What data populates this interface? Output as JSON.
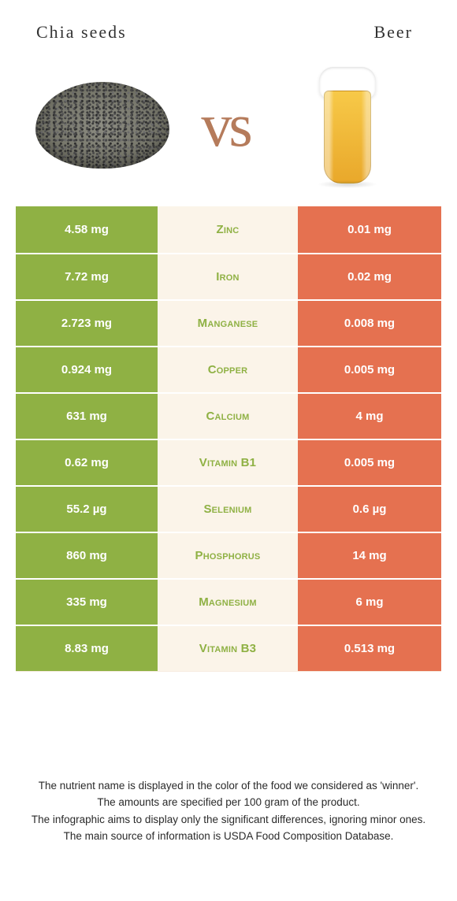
{
  "header": {
    "left_title": "Chia seeds",
    "right_title": "Beer",
    "vs_label": "vs"
  },
  "colors": {
    "left_cell": "#8fb144",
    "right_cell": "#e57150",
    "mid_bg": "#fbf4e9",
    "mid_winner_left": "#8fb144",
    "mid_winner_right": "#e57150"
  },
  "table": {
    "rows": [
      {
        "nutrient": "Zinc",
        "left": "4.58 mg",
        "right": "0.01 mg",
        "winner": "left"
      },
      {
        "nutrient": "Iron",
        "left": "7.72 mg",
        "right": "0.02 mg",
        "winner": "left"
      },
      {
        "nutrient": "Manganese",
        "left": "2.723 mg",
        "right": "0.008 mg",
        "winner": "left"
      },
      {
        "nutrient": "Copper",
        "left": "0.924 mg",
        "right": "0.005 mg",
        "winner": "left"
      },
      {
        "nutrient": "Calcium",
        "left": "631 mg",
        "right": "4 mg",
        "winner": "left"
      },
      {
        "nutrient": "Vitamin B1",
        "left": "0.62 mg",
        "right": "0.005 mg",
        "winner": "left"
      },
      {
        "nutrient": "Selenium",
        "left": "55.2 µg",
        "right": "0.6 µg",
        "winner": "left"
      },
      {
        "nutrient": "Phosphorus",
        "left": "860 mg",
        "right": "14 mg",
        "winner": "left"
      },
      {
        "nutrient": "Magnesium",
        "left": "335 mg",
        "right": "6 mg",
        "winner": "left"
      },
      {
        "nutrient": "Vitamin B3",
        "left": "8.83 mg",
        "right": "0.513 mg",
        "winner": "left"
      }
    ]
  },
  "footer": {
    "line1": "The nutrient name is displayed in the color of the food we considered as 'winner'.",
    "line2": "The amounts are specified per 100 gram of the product.",
    "line3": "The infographic aims to display only the significant differences, ignoring minor ones.",
    "line4": "The main source of information is USDA Food Composition Database."
  }
}
